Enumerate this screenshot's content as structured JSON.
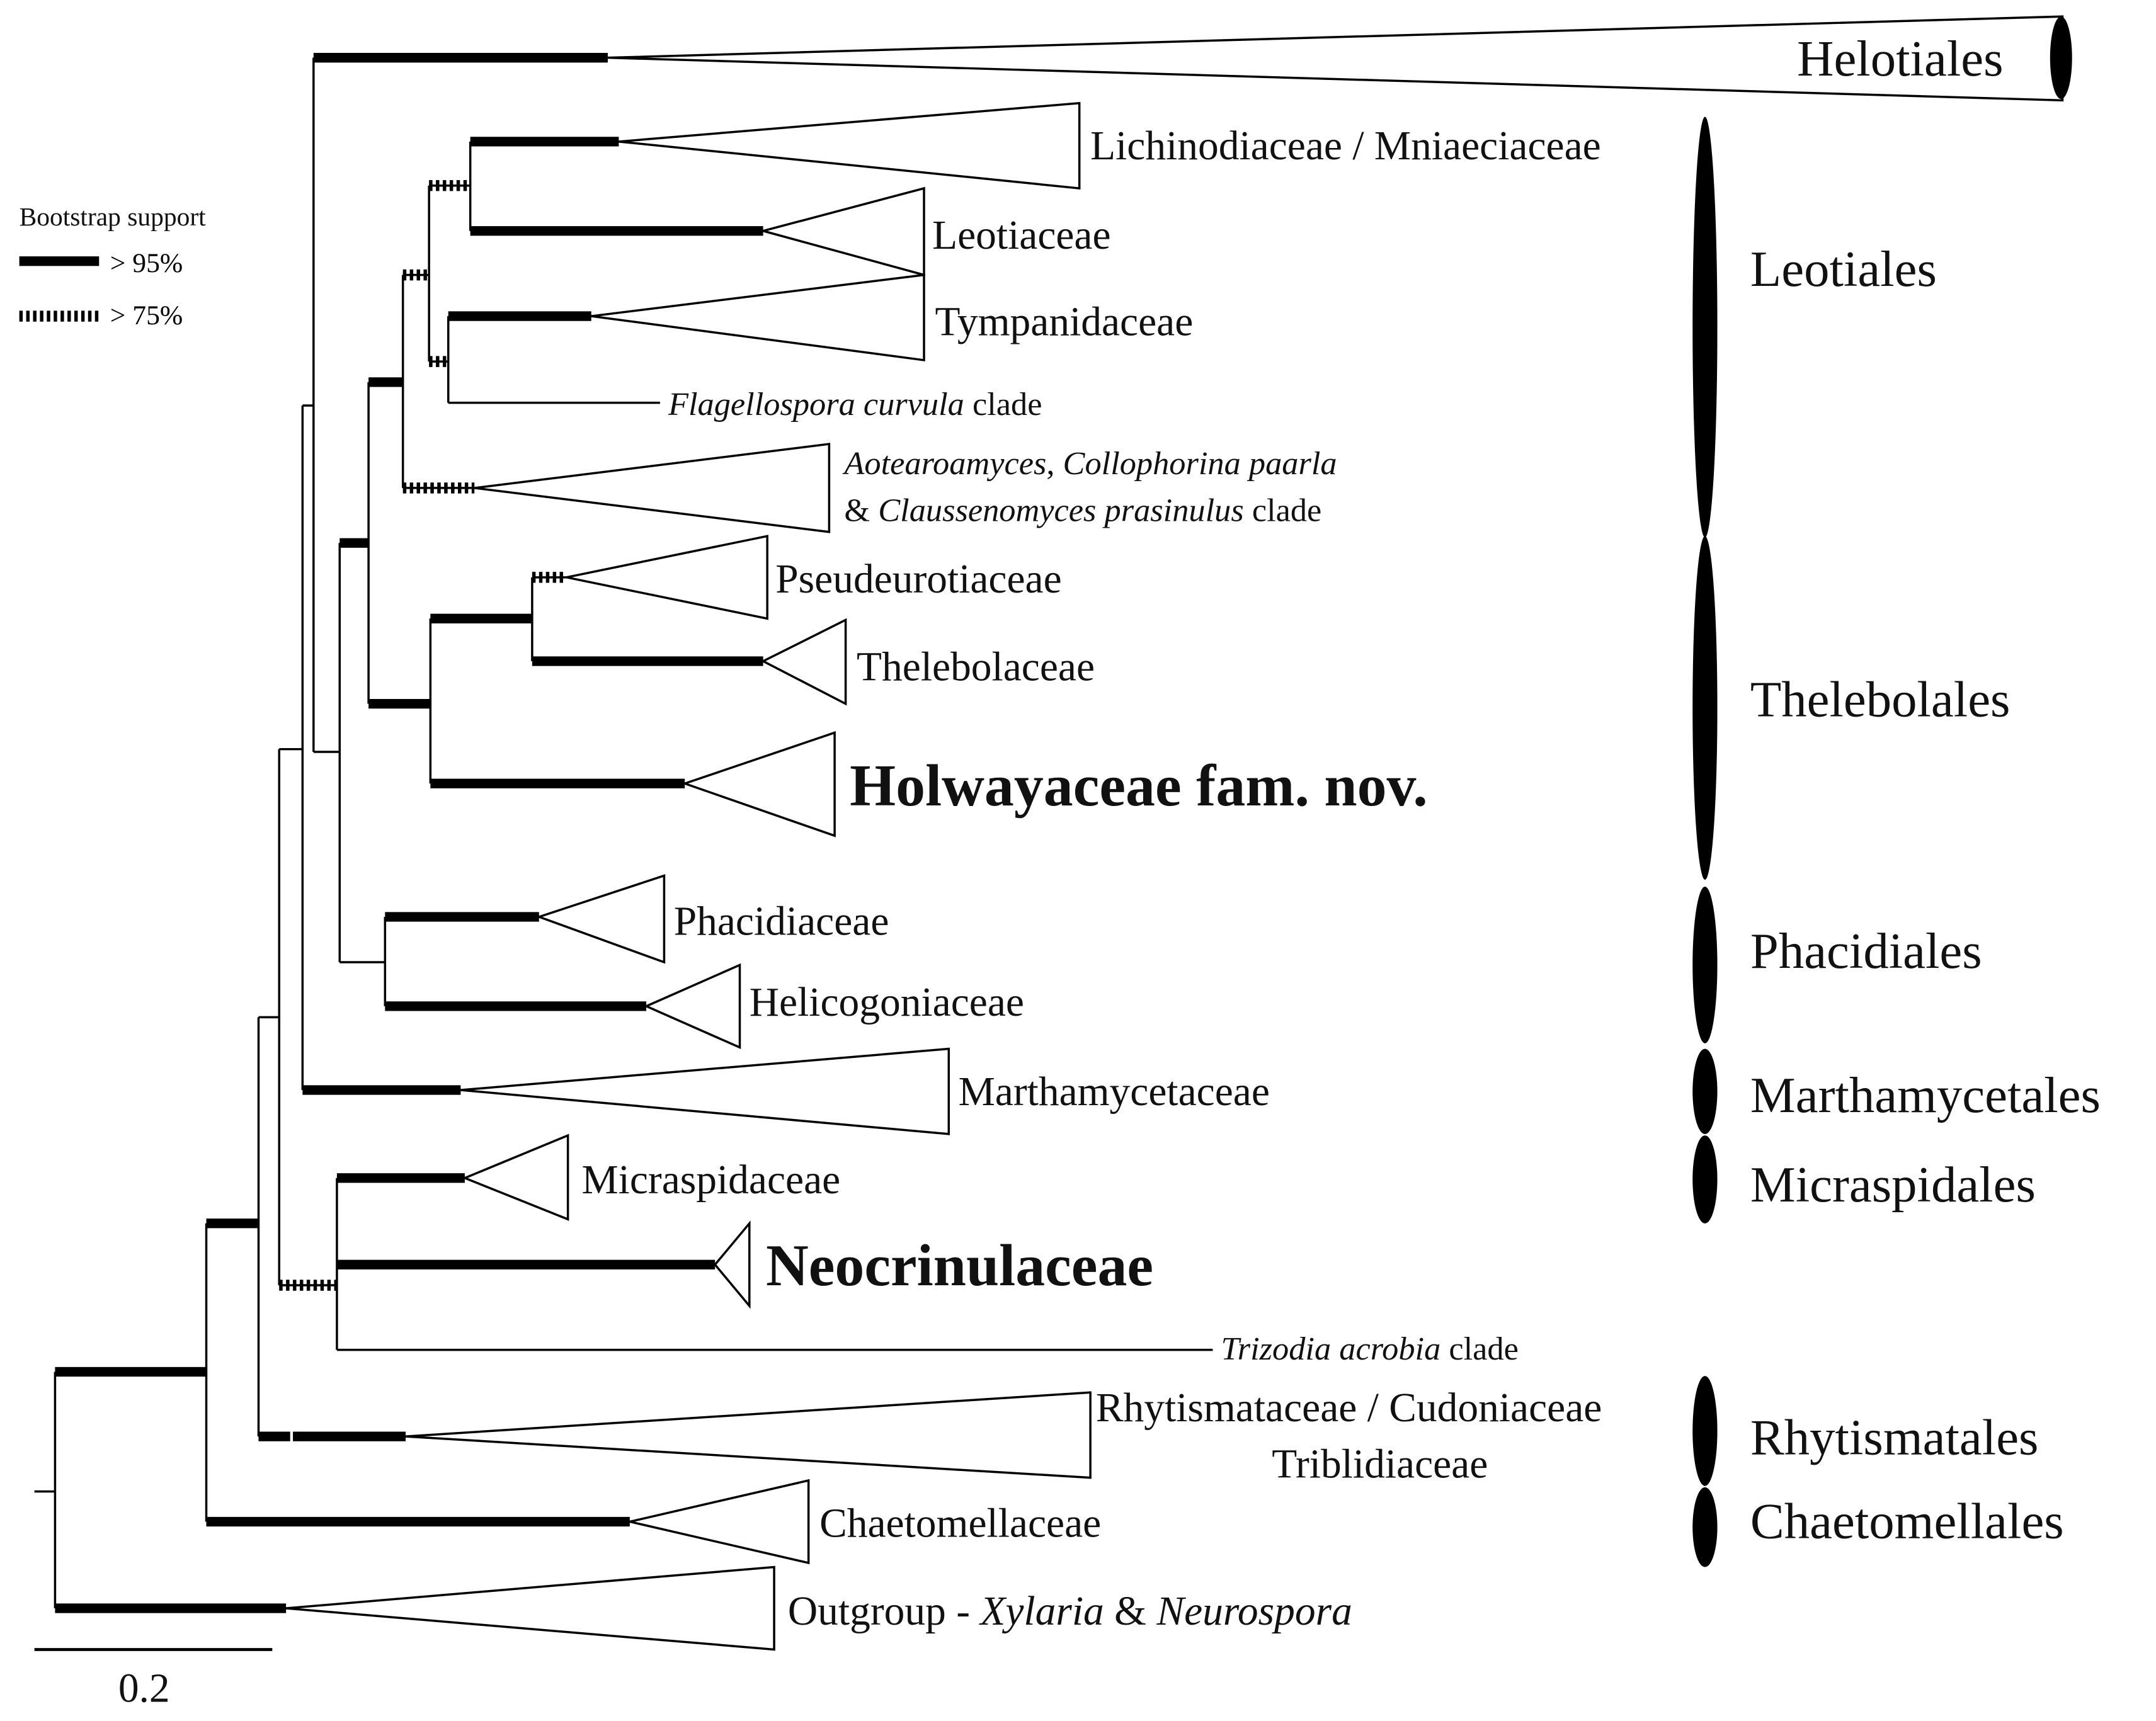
{
  "legend": {
    "title": "Bootstrap support",
    "items": [
      {
        "style": "solid",
        "label": "> 95%"
      },
      {
        "style": "dashed",
        "label": "> 75%"
      }
    ]
  },
  "scale_bar": {
    "label": "0.2"
  },
  "clades": {
    "helotiales": "Helotiales",
    "lichinodiaceae": "Lichinodiaceae / Mniaeciaceae",
    "leotiaceae": "Leotiaceae",
    "tympanidaceae": "Tympanidaceae",
    "flagellospora": {
      "italic": "Flagellospora curvula",
      "rest": " clade"
    },
    "aotearoamyces": {
      "line1_italic": "Aotearoamyces",
      "line1_sep": ", ",
      "line1_italic2": "Collophorina paarla",
      "line2_amp": "& ",
      "line2_italic": "Claussenomyces prasinulus",
      "line2_rest": " clade"
    },
    "pseudeurotiaceae": "Pseudeurotiaceae",
    "thelebolaceae": "Thelebolaceae",
    "holwayaceae": "Holwayaceae fam. nov.",
    "phacidiaceae": "Phacidiaceae",
    "helicogoniaceae": "Helicogoniaceae",
    "marthamycetaceae": "Marthamycetaceae",
    "micraspidaceae": "Micraspidaceae",
    "neocrinulaceae": "Neocrinulaceae",
    "trizodia": {
      "italic": "Trizodia acrobia",
      "rest": " clade"
    },
    "rhytismataceae": "Rhytismataceae / Cudoniaceae",
    "triblidiaceae": "Triblidiaceae",
    "chaetomellaceae": "Chaetomellaceae",
    "outgroup": {
      "prefix": "Outgroup - ",
      "italic1": "Xylaria",
      "amp": " & ",
      "italic2": "Neurospora"
    }
  },
  "orders": {
    "leotiales": "Leotiales",
    "thelebolales": "Thelebolales",
    "phacidiales": "Phacidiales",
    "marthamycetales": "Marthamycetales",
    "micraspidales": "Micraspidales",
    "rhytismatales": "Rhytismatales",
    "chaetomellales": "Chaetomellales"
  }
}
